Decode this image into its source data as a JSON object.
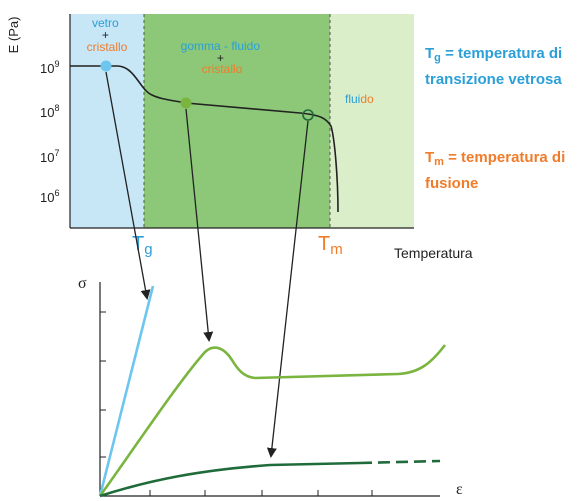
{
  "top_plot": {
    "y_axis_label": "E (Pa)",
    "y_ticks": [
      {
        "base": "10",
        "exp": "9"
      },
      {
        "base": "10",
        "exp": "8"
      },
      {
        "base": "10",
        "exp": "7"
      },
      {
        "base": "10",
        "exp": "6"
      }
    ],
    "x_axis_label": "Temperatura",
    "regions": {
      "glass": {
        "line1": "vetro",
        "line2": "+",
        "line3": "cristallo"
      },
      "rubber": {
        "line1": "gomma - fluido",
        "line2": "+",
        "line3": "cristallo"
      },
      "fluid": {
        "text_a": "flui",
        "text_b": "do"
      }
    },
    "tg_marker": {
      "base": "T",
      "sub": "g"
    },
    "tm_marker": {
      "base": "T",
      "sub": "m"
    },
    "colors": {
      "glass_region": "#c7e6f6",
      "rubber_region": "#8cc877",
      "fluid_region": "#daeec9",
      "blue_text": "#2a9fd8",
      "orange_text": "#f07c2a",
      "curve": "#222222"
    }
  },
  "legend": {
    "tg": {
      "base": "T",
      "sub": "g",
      "text": " = temperatura di",
      "line2": "transizione vetrosa"
    },
    "tm": {
      "base": "T",
      "sub": "m",
      "text": " = temperatura di",
      "line2": "fusione"
    }
  },
  "bottom_plot": {
    "y_axis_label": "σ",
    "x_axis_label": "ε",
    "curve_colors": {
      "glass": "#6ec6ee",
      "rubber": "#7ab53f",
      "fluid": "#1f6b3a"
    }
  }
}
